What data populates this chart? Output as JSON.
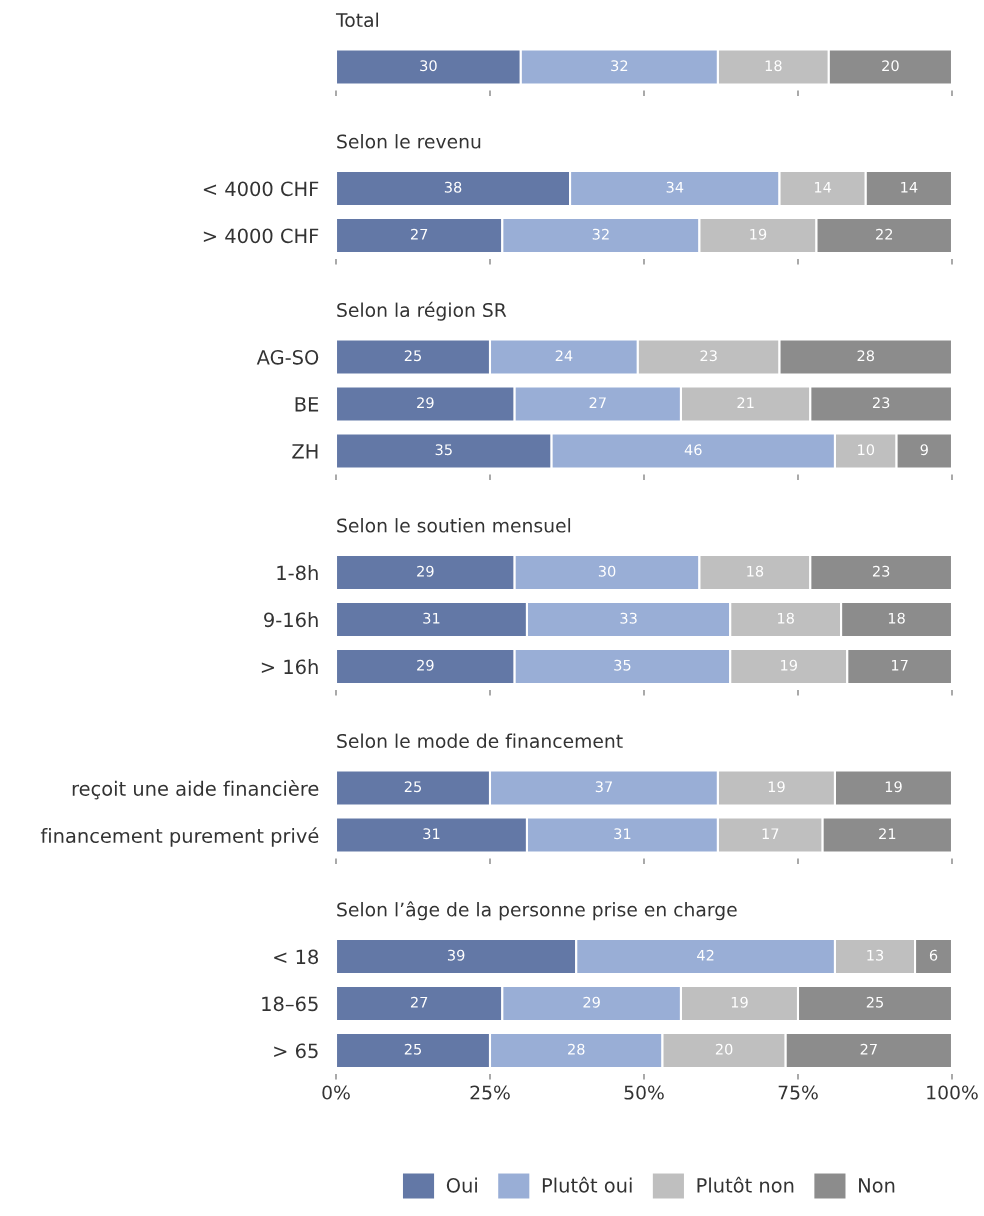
{
  "chart_data": [
    {
      "type": "bar",
      "orientation": "horizontal",
      "stacked": true,
      "title": "Total",
      "categories": [
        null
      ],
      "xlim": [
        0,
        100
      ],
      "xticks": [
        {
          "value": 0,
          "label": null
        },
        {
          "value": 25,
          "label": null
        },
        {
          "value": 50,
          "label": null
        },
        {
          "value": 75,
          "label": null
        },
        {
          "value": 100,
          "label": null
        }
      ],
      "tick_labels": false,
      "data_labels": true,
      "grid": false,
      "legend": false,
      "series": [
        {
          "color": "#6378a6",
          "values": [
            30
          ]
        },
        {
          "color": "#99aed6",
          "values": [
            32
          ]
        },
        {
          "color": "#bfbfbf",
          "values": [
            18
          ]
        },
        {
          "color": "#8c8c8c",
          "values": [
            20
          ]
        }
      ]
    },
    {
      "type": "bar",
      "orientation": "horizontal",
      "stacked": true,
      "title": "Selon le revenu",
      "categories": [
        "< 4000 CHF",
        "> 4000 CHF"
      ],
      "xlim": [
        0,
        100
      ],
      "xticks": [
        {
          "value": 0,
          "label": null
        },
        {
          "value": 25,
          "label": null
        },
        {
          "value": 50,
          "label": null
        },
        {
          "value": 75,
          "label": null
        },
        {
          "value": 100,
          "label": null
        }
      ],
      "tick_labels": "y",
      "data_labels": true,
      "grid": false,
      "legend": false,
      "series": [
        {
          "color": "#6378a6",
          "values": [
            38,
            27
          ]
        },
        {
          "color": "#99aed6",
          "values": [
            34,
            32
          ]
        },
        {
          "color": "#bfbfbf",
          "values": [
            14,
            19
          ]
        },
        {
          "color": "#8c8c8c",
          "values": [
            14,
            22
          ]
        }
      ]
    },
    {
      "type": "bar",
      "orientation": "horizontal",
      "stacked": true,
      "title": "Selon la région SR",
      "categories": [
        "AG-SO",
        "BE",
        "ZH"
      ],
      "xlim": [
        0,
        100
      ],
      "xticks": [
        {
          "value": 0,
          "label": null
        },
        {
          "value": 25,
          "label": null
        },
        {
          "value": 50,
          "label": null
        },
        {
          "value": 75,
          "label": null
        },
        {
          "value": 100,
          "label": null
        }
      ],
      "tick_labels": "y",
      "data_labels": true,
      "grid": false,
      "legend": false,
      "series": [
        {
          "color": "#6378a6",
          "values": [
            25,
            29,
            35
          ]
        },
        {
          "color": "#99aed6",
          "values": [
            24,
            27,
            46
          ]
        },
        {
          "color": "#bfbfbf",
          "values": [
            23,
            21,
            10
          ]
        },
        {
          "color": "#8c8c8c",
          "values": [
            28,
            23,
            9
          ]
        }
      ]
    },
    {
      "type": "bar",
      "orientation": "horizontal",
      "stacked": true,
      "title": "Selon le soutien mensuel",
      "categories": [
        "1-8h",
        "9-16h",
        "> 16h"
      ],
      "xlim": [
        0,
        100
      ],
      "xticks": [
        {
          "value": 0,
          "label": null
        },
        {
          "value": 25,
          "label": null
        },
        {
          "value": 50,
          "label": null
        },
        {
          "value": 75,
          "label": null
        },
        {
          "value": 100,
          "label": null
        }
      ],
      "tick_labels": "y",
      "data_labels": true,
      "grid": false,
      "legend": false,
      "series": [
        {
          "color": "#6378a6",
          "values": [
            29,
            31,
            29
          ]
        },
        {
          "color": "#99aed6",
          "values": [
            30,
            33,
            35
          ]
        },
        {
          "color": "#bfbfbf",
          "values": [
            18,
            18,
            19
          ]
        },
        {
          "color": "#8c8c8c",
          "values": [
            23,
            18,
            17
          ]
        }
      ]
    },
    {
      "type": "bar",
      "orientation": "horizontal",
      "stacked": true,
      "title": "Selon le mode de financement",
      "categories": [
        "reçoit une aide financière",
        "financement purement privé"
      ],
      "xlim": [
        0,
        100
      ],
      "xticks": [
        {
          "value": 0,
          "label": null
        },
        {
          "value": 25,
          "label": null
        },
        {
          "value": 50,
          "label": null
        },
        {
          "value": 75,
          "label": null
        },
        {
          "value": 100,
          "label": null
        }
      ],
      "tick_labels": "y",
      "data_labels": true,
      "grid": false,
      "legend": false,
      "series": [
        {
          "color": "#6378a6",
          "values": [
            25,
            31
          ]
        },
        {
          "color": "#99aed6",
          "values": [
            37,
            31
          ]
        },
        {
          "color": "#bfbfbf",
          "values": [
            19,
            17
          ]
        },
        {
          "color": "#8c8c8c",
          "values": [
            19,
            21
          ]
        }
      ]
    },
    {
      "type": "bar",
      "orientation": "horizontal",
      "stacked": true,
      "title": "Selon l’âge de la personne prise en charge",
      "categories": [
        "< 18",
        "18–65",
        "> 65"
      ],
      "xlim": [
        0,
        100
      ],
      "xticks": [
        {
          "value": 0,
          "label": "0%"
        },
        {
          "value": 25,
          "label": "25%"
        },
        {
          "value": 50,
          "label": "50%"
        },
        {
          "value": 75,
          "label": "75%"
        },
        {
          "value": 100,
          "label": "100%"
        }
      ],
      "data_labels": true,
      "grid": false,
      "legend": "bottom",
      "series": [
        {
          "name": "Oui",
          "color": "#6378a6",
          "values": [
            39,
            27,
            25
          ]
        },
        {
          "name": "Plutôt oui",
          "color": "#99aed6",
          "values": [
            42,
            29,
            28
          ]
        },
        {
          "name": "Plutôt non",
          "color": "#bfbfbf",
          "values": [
            13,
            19,
            20
          ]
        },
        {
          "name": "Non",
          "color": "#8c8c8c",
          "values": [
            6,
            25,
            27
          ]
        }
      ]
    }
  ]
}
